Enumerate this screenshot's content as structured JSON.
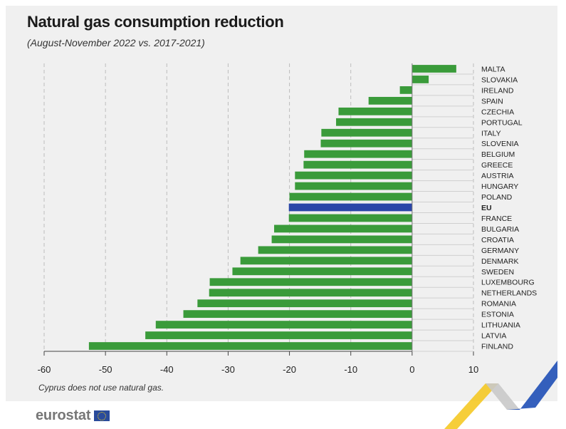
{
  "title": "Natural gas consumption reduction",
  "subtitle": "(August-November 2022 vs. 2017-2021)",
  "footnote": "Cyprus does not use natural gas.",
  "brand": "eurostat",
  "colors": {
    "bar": "#3a9b3a",
    "highlight": "#2a46a8",
    "background": "#f0f0f0"
  },
  "chart_data": {
    "type": "bar",
    "orientation": "horizontal",
    "categories": [
      "MALTA",
      "SLOVAKIA",
      "IRELAND",
      "SPAIN",
      "CZECHIA",
      "PORTUGAL",
      "ITALY",
      "SLOVENIA",
      "BELGIUM",
      "GREECE",
      "AUSTRIA",
      "HUNGARY",
      "POLAND",
      "EU",
      "FRANCE",
      "BULGARIA",
      "CROATIA",
      "GERMANY",
      "DENMARK",
      "SWEDEN",
      "LUXEMBOURG",
      "NETHERLANDS",
      "ROMANIA",
      "ESTONIA",
      "LITHUANIA",
      "LATVIA",
      "FINLAND"
    ],
    "values": [
      7.2,
      2.7,
      -2.0,
      -7.1,
      -12.0,
      -12.4,
      -14.8,
      -14.9,
      -17.6,
      -17.7,
      -19.1,
      -19.1,
      -20.0,
      -20.1,
      -20.1,
      -22.5,
      -22.9,
      -25.1,
      -28.0,
      -29.3,
      -33.0,
      -33.1,
      -35.0,
      -37.3,
      -41.8,
      -43.5,
      -52.7
    ],
    "highlight": "EU",
    "xlim": [
      -60,
      10
    ],
    "xticks": [
      -60,
      -50,
      -40,
      -30,
      -20,
      -10,
      0,
      10
    ],
    "grid": true,
    "xlabel": "",
    "ylabel": ""
  }
}
